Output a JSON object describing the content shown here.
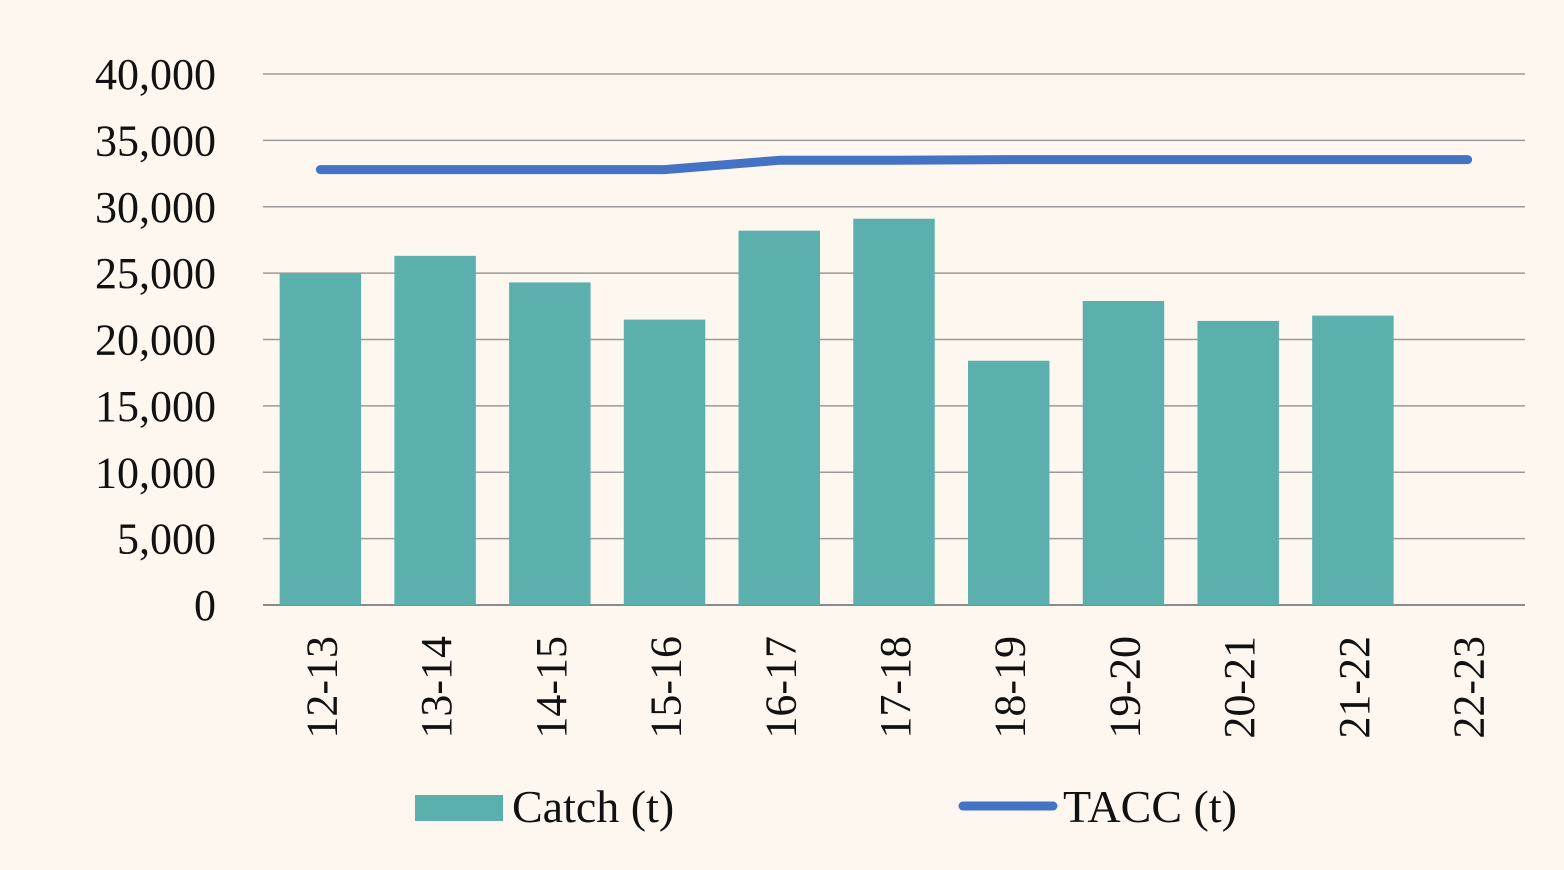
{
  "chart_data": {
    "type": "bar",
    "categories": [
      "12-13",
      "13-14",
      "14-15",
      "15-16",
      "16-17",
      "17-18",
      "18-19",
      "19-20",
      "20-21",
      "21-22",
      "22-23"
    ],
    "series": [
      {
        "name": "Catch (t)",
        "type": "bar",
        "color": "#5bb0ae",
        "values": [
          25000,
          26300,
          24300,
          21500,
          28200,
          29100,
          18400,
          22900,
          21400,
          21800,
          null
        ]
      },
      {
        "name": "TACC (t)",
        "type": "line",
        "color": "#4472c4",
        "values": [
          32800,
          32800,
          32800,
          32800,
          33500,
          33500,
          33550,
          33550,
          33550,
          33550,
          33550
        ]
      }
    ],
    "yticks": [
      "0",
      "5,000",
      "10,000",
      "15,000",
      "20,000",
      "25,000",
      "30,000",
      "35,000",
      "40,000"
    ],
    "ylim": [
      0,
      40000
    ],
    "title": "",
    "xlabel": "",
    "ylabel": "",
    "grid": true,
    "legend": "bottom"
  }
}
